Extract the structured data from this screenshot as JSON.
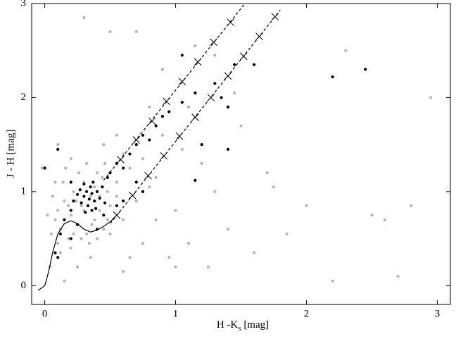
{
  "chart_data": {
    "type": "scatter",
    "ylabel": "J - H [mag]",
    "xlabel": [
      "H -K",
      "s",
      " [mag]"
    ],
    "xlim": [
      -0.1,
      3.1
    ],
    "ylim": [
      -0.2,
      3.0
    ],
    "xticks": [
      0,
      1,
      2,
      3
    ],
    "yticks": [
      0,
      1,
      2,
      3
    ],
    "series": [
      {
        "mode": "markers",
        "marker": "circle",
        "color": "#b4b4b4",
        "x": [
          0.05,
          0.08,
          0.1,
          0.12,
          0.15,
          0.18,
          0.2,
          0.22,
          0.25,
          0.28,
          0.3,
          0.32,
          0.35,
          0.38,
          0.4,
          0.42,
          0.45,
          0.48,
          0.5,
          0.55,
          0.6,
          0.65,
          0.7,
          0.75,
          0.8,
          0.02,
          0.06,
          0.1,
          0.14,
          0.18,
          0.22,
          0.26,
          0.3,
          0.34,
          0.38,
          0.42,
          0.46,
          0.5,
          0.55,
          0.6,
          0.12,
          0.16,
          0.2,
          0.24,
          0.28,
          0.32,
          0.36,
          0.4,
          0.44,
          0.48,
          0.9,
          1.0,
          1.1,
          1.2,
          1.3,
          1.4,
          1.5,
          1.6,
          1.7,
          1.85,
          2.0,
          2.3,
          2.5,
          2.7,
          2.8,
          2.95,
          0.3,
          0.5,
          0.7,
          0.9,
          1.1,
          1.3,
          1.45,
          0.95,
          1.15,
          0.1,
          0.2,
          0.35,
          0.55,
          0.75,
          0.85,
          1.05,
          0.25,
          0.45,
          0.65,
          -0.02,
          0.04,
          0.08,
          0.15,
          0.85,
          1.25,
          1.75,
          2.2,
          2.6,
          0.6,
          0.8,
          1.0
        ],
        "values": [
          0.55,
          0.7,
          0.8,
          0.6,
          0.9,
          0.5,
          0.75,
          1.0,
          0.65,
          0.85,
          1.1,
          0.55,
          0.95,
          0.7,
          1.2,
          0.8,
          0.6,
          1.0,
          0.85,
          1.1,
          0.7,
          1.25,
          0.9,
          1.35,
          1.05,
          0.75,
          0.95,
          0.45,
          1.1,
          0.85,
          0.55,
          1.2,
          0.8,
          0.45,
          1.05,
          0.95,
          1.3,
          0.55,
          0.95,
          1.4,
          0.35,
          1.25,
          0.4,
          0.9,
          0.5,
          1.3,
          0.65,
          0.5,
          1.15,
          0.7,
          1.6,
          0.8,
          1.9,
          1.3,
          2.45,
          0.6,
          1.7,
          0.35,
          1.2,
          0.55,
          0.85,
          2.5,
          0.75,
          0.1,
          0.85,
          2.0,
          2.85,
          2.7,
          2.7,
          2.3,
          0.45,
          1.0,
          2.05,
          0.3,
          2.55,
          1.5,
          1.35,
          0.3,
          1.6,
          0.45,
          1.15,
          1.45,
          0.2,
          1.5,
          0.3,
          1.25,
          0.2,
          1.1,
          0.05,
          0.7,
          0.2,
          1.05,
          0.05,
          0.7,
          0.15,
          1.9,
          0.2
        ]
      },
      {
        "mode": "markers",
        "marker": "circle",
        "color": "#000000",
        "x": [
          0.3,
          0.32,
          0.34,
          0.36,
          0.38,
          0.28,
          0.35,
          0.4,
          0.33,
          0.37,
          0.25,
          0.42,
          0.3,
          0.39,
          0.27,
          0.44,
          0.22,
          0.46,
          0.31,
          0.36,
          0.2,
          0.48,
          0.5,
          0.55,
          0.6,
          0.65,
          0.7,
          0.75,
          0.8,
          0.85,
          0.9,
          0.95,
          1.05,
          1.15,
          1.3,
          1.35,
          1.4,
          1.45,
          1.6,
          2.2,
          2.45,
          1.05,
          1.4,
          1.15,
          0.1,
          0.0,
          0.08,
          0.1,
          0.12,
          0.15,
          0.2,
          0.25,
          0.4,
          0.55,
          0.6,
          0.7,
          0.75,
          0.2,
          0.45,
          1.2
        ],
        "values": [
          0.95,
          1.0,
          0.92,
          0.98,
          0.9,
          0.88,
          1.05,
          1.0,
          0.85,
          1.1,
          0.97,
          0.93,
          1.08,
          0.82,
          1.02,
          1.05,
          0.9,
          0.88,
          0.78,
          0.8,
          1.1,
          1.15,
          1.2,
          1.3,
          1.25,
          1.4,
          1.5,
          1.6,
          1.55,
          1.7,
          1.8,
          1.85,
          1.95,
          2.05,
          2.15,
          2.0,
          1.9,
          2.35,
          2.35,
          2.22,
          2.3,
          2.45,
          1.45,
          1.12,
          1.45,
          1.25,
          0.35,
          0.3,
          0.55,
          0.7,
          0.5,
          0.65,
          0.6,
          0.85,
          0.9,
          1.1,
          1.0,
          0.8,
          0.75,
          1.5
        ]
      },
      {
        "mode": "lines",
        "dash": true,
        "color": "#000000",
        "x": [
          0.45,
          1.53
        ],
        "values": [
          1.12,
          3.0
        ]
      },
      {
        "mode": "lines",
        "dash": true,
        "color": "#000000",
        "x": [
          0.5,
          1.8
        ],
        "values": [
          0.66,
          2.93
        ]
      },
      {
        "mode": "markers",
        "marker": "x",
        "color": "#000000",
        "x": [
          0.58,
          0.7,
          0.82,
          0.93,
          1.05,
          1.17,
          1.29,
          1.42
        ],
        "values": [
          1.34,
          1.55,
          1.75,
          1.96,
          2.17,
          2.38,
          2.59,
          2.8
        ]
      },
      {
        "mode": "markers",
        "marker": "x",
        "color": "#000000",
        "x": [
          0.55,
          0.67,
          0.79,
          0.91,
          1.03,
          1.15,
          1.27,
          1.4,
          1.52,
          1.64,
          1.76
        ],
        "values": [
          0.75,
          0.96,
          1.17,
          1.38,
          1.59,
          1.79,
          2.0,
          2.23,
          2.44,
          2.65,
          2.86
        ]
      },
      {
        "mode": "lines",
        "color": "#000000",
        "x": [
          -0.05,
          0.0,
          0.03,
          0.06,
          0.1,
          0.15,
          0.2,
          0.25,
          0.3,
          0.35,
          0.4,
          0.45,
          0.5,
          0.55
        ],
        "values": [
          -0.05,
          0.0,
          0.15,
          0.35,
          0.55,
          0.66,
          0.69,
          0.66,
          0.6,
          0.57,
          0.59,
          0.63,
          0.68,
          0.75
        ]
      }
    ]
  }
}
